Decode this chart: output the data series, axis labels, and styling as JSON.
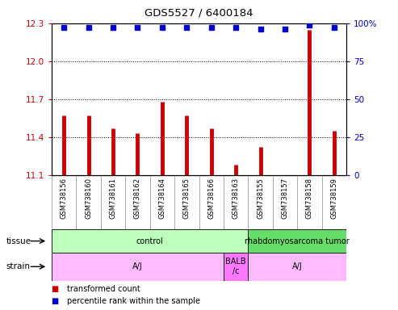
{
  "title": "GDS5527 / 6400184",
  "samples": [
    "GSM738156",
    "GSM738160",
    "GSM738161",
    "GSM738162",
    "GSM738164",
    "GSM738165",
    "GSM738166",
    "GSM738163",
    "GSM738155",
    "GSM738157",
    "GSM738158",
    "GSM738159"
  ],
  "transformed_counts": [
    11.57,
    11.57,
    11.47,
    11.43,
    11.68,
    11.57,
    11.47,
    11.18,
    11.32,
    11.1,
    12.25,
    11.45
  ],
  "percentile_ranks": [
    97,
    97,
    97,
    97,
    97,
    97,
    97,
    97,
    96,
    96,
    99,
    97
  ],
  "ylim_left": [
    11.1,
    12.3
  ],
  "ylim_right": [
    0,
    100
  ],
  "yticks_left": [
    11.1,
    11.4,
    11.7,
    12.0,
    12.3
  ],
  "yticks_right": [
    0,
    25,
    50,
    75,
    100
  ],
  "dotted_ticks": [
    11.4,
    11.7,
    12.0
  ],
  "bar_color": "#cc0000",
  "dot_color": "#0000cc",
  "tissue_groups": [
    {
      "label": "control",
      "start": 0,
      "end": 8,
      "color": "#bbffbb"
    },
    {
      "label": "rhabdomyosarcoma tumor",
      "start": 8,
      "end": 12,
      "color": "#66dd66"
    }
  ],
  "strain_groups": [
    {
      "label": "A/J",
      "start": 0,
      "end": 7,
      "color": "#ffbbff"
    },
    {
      "label": "BALB\n/c",
      "start": 7,
      "end": 8,
      "color": "#ff77ff"
    },
    {
      "label": "A/J",
      "start": 8,
      "end": 12,
      "color": "#ffbbff"
    }
  ],
  "legend_items": [
    {
      "label": "transformed count",
      "color": "#cc0000"
    },
    {
      "label": "percentile rank within the sample",
      "color": "#0000cc"
    }
  ],
  "background_color": "#ffffff",
  "xlabels_bg": "#d0d0d0",
  "plot_bg": "#ffffff",
  "cell_edge_color": "#888888"
}
